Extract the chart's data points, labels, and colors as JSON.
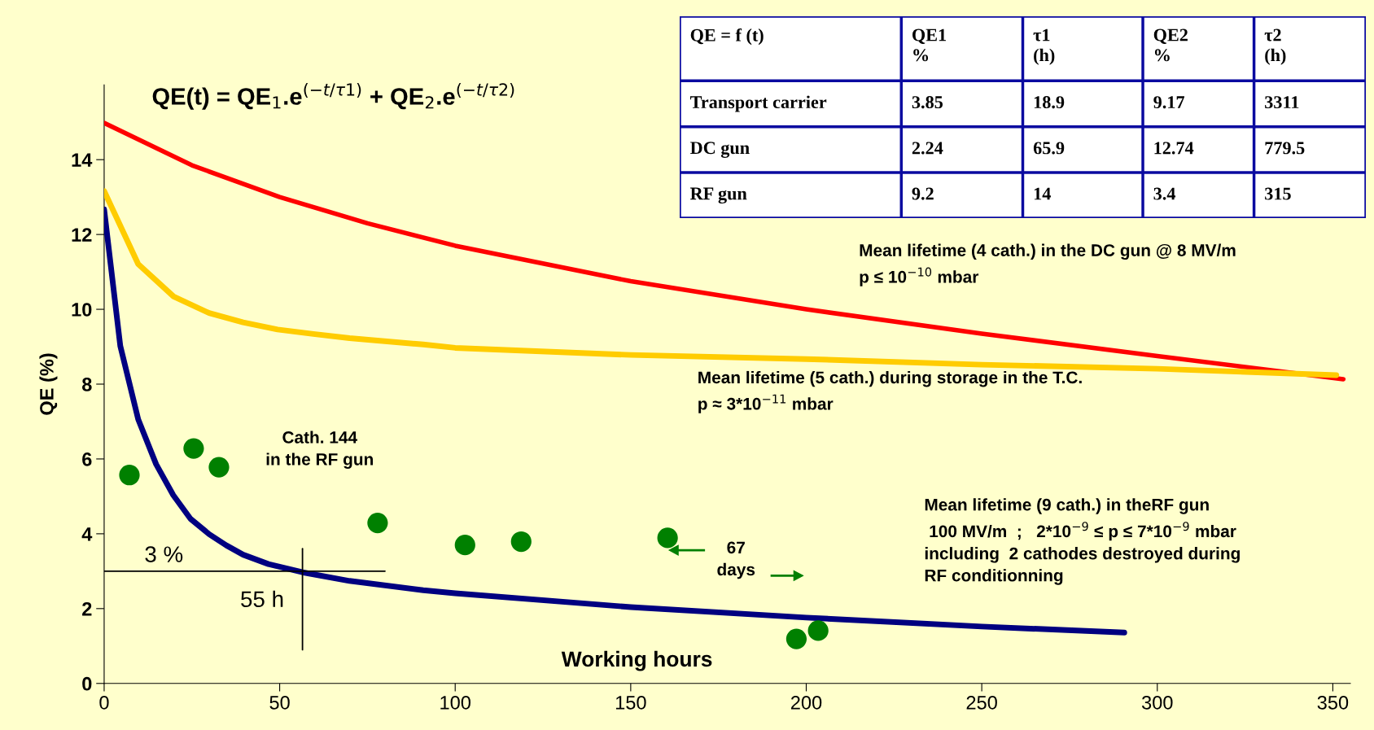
{
  "chart_data": {
    "type": "line",
    "title": "QE(t) = QE$_{1}$.e$^{(−t/τ1)}$ + QE$_{2}$.e$^{(−t/τ2)}$",
    "xlabel": "Working hours",
    "ylabel": "QE (%)",
    "xlim": [
      0,
      355
    ],
    "xticks": [
      0,
      50,
      100,
      150,
      200,
      250,
      300,
      350
    ],
    "ylim": [
      0,
      16
    ],
    "yticks": [
      0,
      2,
      4,
      6,
      8,
      10,
      12,
      14
    ],
    "grid": false,
    "legend": false,
    "marker": "none",
    "line_style": "solid",
    "series": [
      {
        "name": "Mean lifetime (4 cath.) in the DC gun @ 8 MV/m\np ≤ 10$^{−10}$ mbar",
        "color": "#ff0000",
        "x": [
          0,
          25,
          50,
          75,
          100,
          150,
          200,
          250,
          300,
          353
        ],
        "values": [
          14.98,
          13.85,
          13.0,
          12.3,
          11.7,
          10.75,
          10.0,
          9.35,
          8.75,
          8.13
        ]
      },
      {
        "name": "Mean lifetime (5 cath.) during storage in the T.C.\np ≈ 3*10$^{−11}$ mbar",
        "color": "#ffcc00",
        "x": [
          0,
          9.7,
          19.8,
          29.9,
          39.6,
          49.4,
          59.6,
          69.9,
          90.9,
          100,
          150,
          200,
          250,
          300,
          351
        ],
        "values": [
          13.16,
          11.21,
          10.34,
          9.9,
          9.65,
          9.46,
          9.34,
          9.23,
          9.06,
          8.97,
          8.78,
          8.67,
          8.52,
          8.41,
          8.24
        ]
      },
      {
        "name": "Mean lifetime (9 cath.) in theRF gun\n 100 MV/m  ;   2*10$^{−9}$ ≤ p ≤ 7*10$^{−9}$ mbar\nincluding  2 cathodes destroyed during\nRF conditionning",
        "color": "#000080",
        "x": [
          0,
          4.6,
          9.7,
          14.8,
          19.7,
          24.6,
          29.9,
          34.8,
          39.6,
          46.8,
          56.5,
          69.9,
          90.9,
          100,
          150,
          200,
          250,
          290.6
        ],
        "values": [
          12.67,
          9.02,
          7.06,
          5.86,
          5.03,
          4.4,
          3.99,
          3.69,
          3.44,
          3.19,
          2.97,
          2.74,
          2.49,
          2.41,
          2.04,
          1.76,
          1.52,
          1.36
        ]
      },
      {
        "name": "Cath. 144\nin the RF gun",
        "type": "scatter",
        "marker": "circle",
        "color": "#008000",
        "x": [
          7.2,
          25.5,
          32.7,
          77.9,
          102.8,
          118.8,
          160.5,
          197.2,
          203.4
        ],
        "values": [
          5.57,
          6.28,
          5.78,
          4.29,
          3.7,
          3.79,
          3.89,
          1.19,
          1.41
        ]
      },
      {
        "color": "#000000",
        "x": [
          0,
          80
        ],
        "values": [
          3,
          3
        ]
      },
      {
        "color": "#000000",
        "x": [
          56.5,
          56.5
        ],
        "values": [
          0.9,
          3.6
        ]
      }
    ],
    "annotations": [
      "QE = f (t)",
      "QE1\n%",
      "τ1\n(h)",
      "QE2\n%",
      "τ2\n(h)",
      "Transport carrier",
      "3.85",
      "18.9",
      "9.17",
      "3311",
      "DC gun",
      "2.24",
      "65.9",
      "12.74",
      "779.5",
      "RF gun",
      "9.2",
      "14",
      "3.4",
      "315",
      "3 %",
      "55 h",
      "67\ndays"
    ]
  }
}
